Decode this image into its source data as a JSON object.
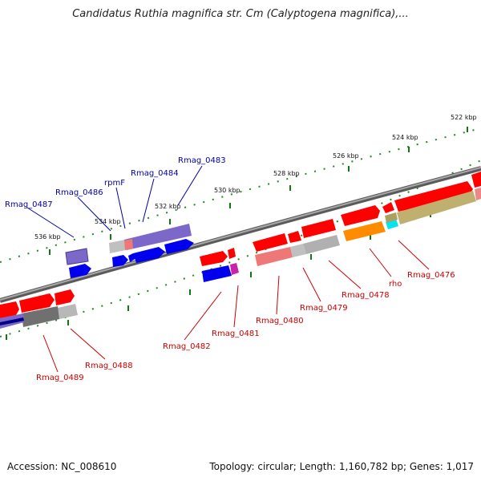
{
  "title": "Candidatus Ruthia magnifica str. Cm (Calyptogena magnifica),...",
  "footer": {
    "accession": "Accession: NC_008610",
    "summary": "Topology: circular; Length: 1,160,782 bp; Genes: 1,017"
  },
  "scale_labels": [
    "522 kbp",
    "524 kbp",
    "526 kbp",
    "528 kbp",
    "530 kbp",
    "532 kbp",
    "534 kbp",
    "536 kbp"
  ],
  "gene_labels_top": [
    "Rmag_0483",
    "Rmag_0484",
    "rpmF",
    "Rmag_0486",
    "Rmag_0487"
  ],
  "gene_labels_bottom": [
    "Rmag_0476",
    "rho",
    "Rmag_0478",
    "Rmag_0479",
    "Rmag_0480",
    "Rmag_0481",
    "Rmag_0482",
    "Rmag_0488",
    "Rmag_0489"
  ],
  "colors": {
    "forward_gene": "#ff0000",
    "reverse_gene": "#0000ff",
    "top_label": "#0000aa",
    "bottom_label": "#cc0000",
    "backbone": "#808080",
    "tick": "#117711"
  }
}
